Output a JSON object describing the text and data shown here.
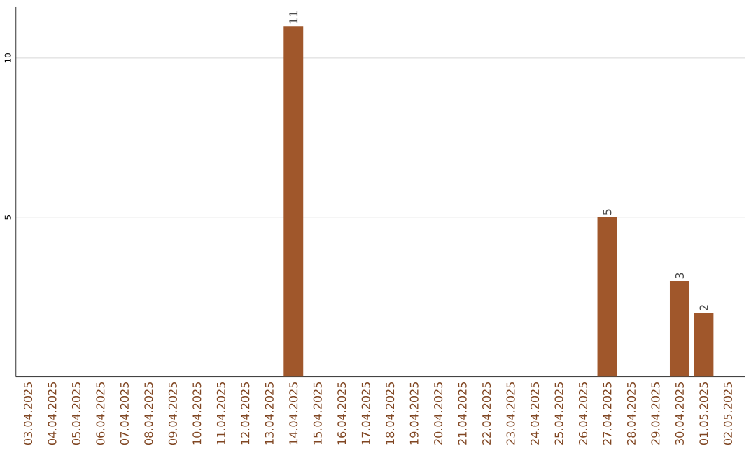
{
  "chart_data": {
    "type": "bar",
    "categories": [
      "03.04.2025",
      "04.04.2025",
      "05.04.2025",
      "06.04.2025",
      "07.04.2025",
      "08.04.2025",
      "09.04.2025",
      "10.04.2025",
      "11.04.2025",
      "12.04.2025",
      "13.04.2025",
      "14.04.2025",
      "15.04.2025",
      "16.04.2025",
      "17.04.2025",
      "18.04.2025",
      "19.04.2025",
      "20.04.2025",
      "21.04.2025",
      "22.04.2025",
      "23.04.2025",
      "24.04.2025",
      "25.04.2025",
      "26.04.2025",
      "27.04.2025",
      "28.04.2025",
      "29.04.2025",
      "30.04.2025",
      "01.05.2025",
      "02.05.2025"
    ],
    "values": [
      0,
      0,
      0,
      0,
      0,
      0,
      0,
      0,
      0,
      0,
      0,
      11,
      0,
      0,
      0,
      0,
      0,
      0,
      0,
      0,
      0,
      0,
      0,
      0,
      5,
      0,
      0,
      3,
      2,
      0
    ],
    "value_labels": [
      null,
      null,
      null,
      null,
      null,
      null,
      null,
      null,
      null,
      null,
      null,
      "11",
      null,
      null,
      null,
      null,
      null,
      null,
      null,
      null,
      null,
      null,
      null,
      null,
      "5",
      null,
      null,
      "3",
      "2",
      null
    ],
    "color": "#a0572b",
    "ylim": [
      0,
      11.6
    ],
    "yticks": [
      5,
      10
    ],
    "grid": "y"
  }
}
